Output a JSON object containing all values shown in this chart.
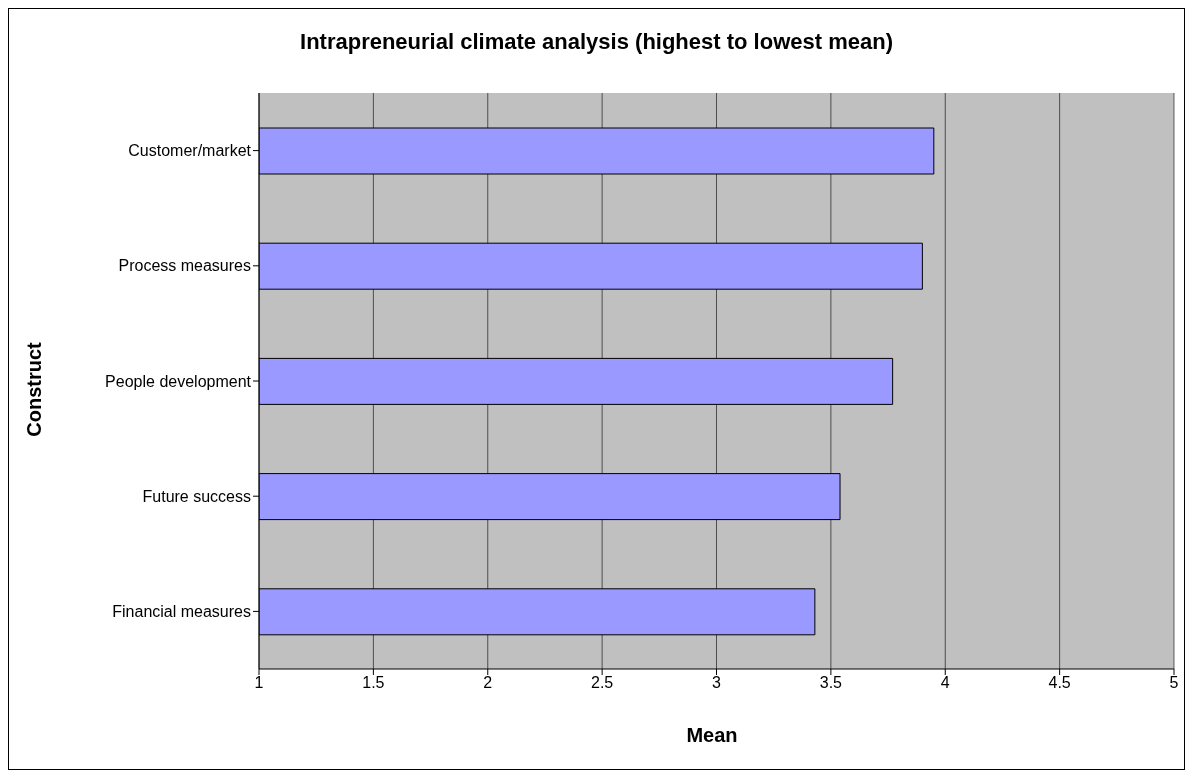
{
  "chart_data": {
    "type": "bar",
    "orientation": "horizontal",
    "title": "Intrapreneurial climate analysis (highest to lowest mean)",
    "xlabel": "Mean",
    "ylabel": "Construct",
    "categories": [
      "Customer/market",
      "Process measures",
      "People development",
      "Future success",
      "Financial measures"
    ],
    "values": [
      3.95,
      3.9,
      3.77,
      3.54,
      3.43
    ],
    "color": "#9999ff",
    "xlim": [
      1,
      5
    ],
    "xticks": [
      1,
      1.5,
      2,
      2.5,
      3,
      3.5,
      4,
      4.5,
      5
    ],
    "grid": "x",
    "legend": false
  }
}
